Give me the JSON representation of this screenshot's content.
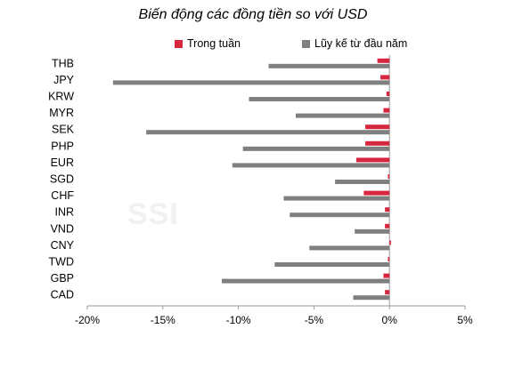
{
  "chart_data": {
    "type": "bar",
    "orientation": "horizontal",
    "title": "Biến động các đồng tiền so với USD",
    "categories": [
      "THB",
      "JPY",
      "KRW",
      "MYR",
      "SEK",
      "PHP",
      "EUR",
      "SGD",
      "CHF",
      "INR",
      "VND",
      "CNY",
      "TWD",
      "GBP",
      "CAD"
    ],
    "series": [
      {
        "name": "Trong tuần",
        "color": "#d7263d",
        "values": [
          -0.8,
          -0.6,
          -0.2,
          -0.4,
          -1.6,
          -1.6,
          -2.2,
          -0.1,
          -1.7,
          -0.3,
          -0.3,
          0.1,
          -0.1,
          -0.4,
          -0.3
        ]
      },
      {
        "name": "Lũy kế từ đầu năm",
        "color": "#7f7f7f",
        "values": [
          -8.0,
          -18.3,
          -9.3,
          -6.2,
          -16.1,
          -9.7,
          -10.4,
          -3.6,
          -7.0,
          -6.6,
          -2.3,
          -5.3,
          -7.6,
          -11.1,
          -2.4
        ]
      }
    ],
    "xlim": [
      -20,
      5
    ],
    "xticks": [
      "-20%",
      "-15%",
      "-10%",
      "-5%",
      "0%",
      "5%"
    ],
    "xtick_values": [
      -20,
      -15,
      -10,
      -5,
      0,
      5
    ],
    "legend_position": "top",
    "grid": false
  },
  "watermark": "SSI"
}
